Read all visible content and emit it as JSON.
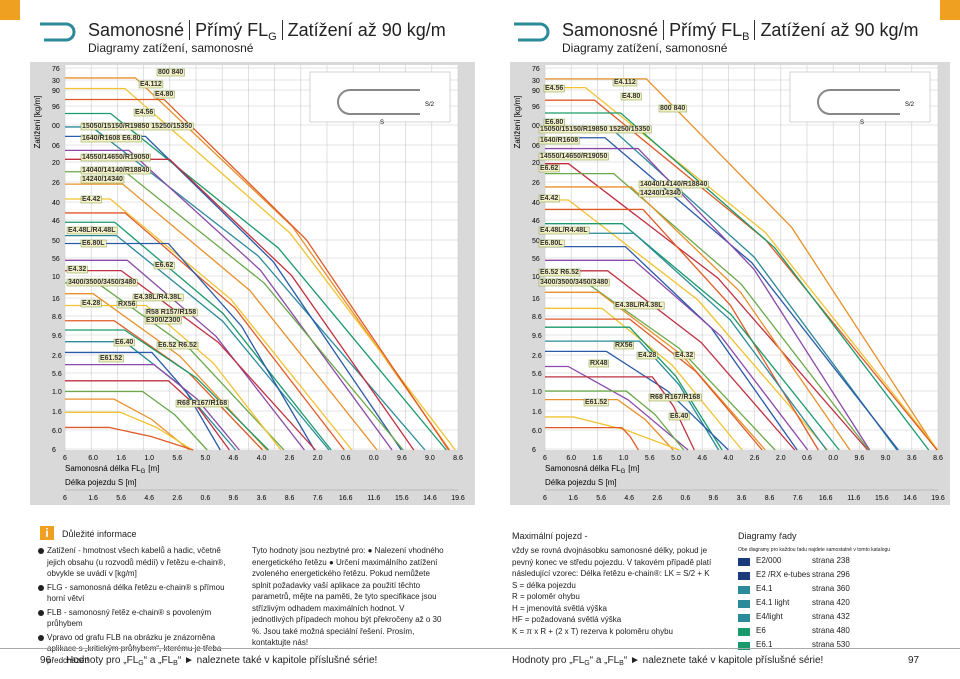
{
  "left": {
    "header": {
      "title_a": "Samonosné",
      "title_b": "Přímý FL",
      "title_b_sub": "G",
      "title_c": "Zatížení až 90 kg/m",
      "subtitle": "Diagramy zatížení, samonosné"
    },
    "chart": {
      "y_label": "Zatížení [kg/m]",
      "yticks": [
        "76",
        "30",
        "90",
        "96",
        "00",
        "06",
        "20",
        "26",
        "40",
        "46",
        "50",
        "56",
        "10",
        "16",
        "8.6",
        "9.6",
        "2.6",
        "5.6",
        "1.0",
        "1.6",
        "6.0",
        "6"
      ],
      "xticks_top": [
        "6",
        "6.0",
        "1.6",
        "1.0",
        "5.6",
        "5.0",
        "4.6",
        "4.0",
        "2.6",
        "2.0",
        "0.6",
        "0.0",
        "9.6",
        "9.0",
        "8.6"
      ],
      "x_label_a": "Samonosná délka FL",
      "x_label_sub": "G",
      "x_label_unit": "[m]",
      "x_label_b": "Délka pojezdu S [m]",
      "xticks_bottom": [
        "6",
        "1.6",
        "5.6",
        "4.6",
        "2.6",
        "0.6",
        "9.6",
        "3.6",
        "8.6",
        "7.6",
        "16.6",
        "11.6",
        "15.6",
        "14.6",
        "19.6"
      ],
      "labels": [
        "800  840",
        "E4.112",
        "E4.80",
        "E4.56",
        "15050/15150/R19850  15250/15350",
        "1640/R1608   E6.80",
        "14550/14650/R19050",
        "14040/14140/R18840",
        "14240/14340",
        "E4.42",
        "E4.48L/R4.48L",
        "E6.80L",
        "E4.32",
        "E6.62",
        "3400/3500/3450/3480",
        "E4.38L/R4.38L",
        "E4.28",
        "RX56",
        "R58  R157/R158",
        "E300/Z300",
        "E6.40",
        "E6.52  R6.52",
        "E61.52",
        "R68  R167/R168"
      ],
      "schema": [
        "S",
        "S/2"
      ]
    },
    "info": {
      "title": "Důležité informace",
      "bullets": [
        "Zatížení - hmotnost všech kabelů a hadic, včetně jejich obsahu (u rozvodů médií) v řetězu e-chain®, obvykle se uvádí v [kg/m]",
        "FLG - samonosná délka řetězu e-chain® s přímou horní větví",
        "FLB - samonosný řetěz e-chain® s povoleným průhybem",
        "Vpravo od grafu FLB na obrázku je znázorněna aplikace s „kritickým průhybem“, kterému je třeba předcházet!"
      ],
      "middle": "Tyto hodnoty jsou nezbytné pro: ● Nalezení vhodného energetického řetězu ● Určení maximálního zatížení zvoleného energetického řetězu. Pokud nemůžete splnit požadavky vaší aplikace za použití těchto parametrů, mějte na paměti, že tyto specifikace jsou střízlivým odhadem maximálních hodnot. V jednotlivých případech mohou být překročeny až o 30 %. Jsou také možná speciální řešení. Prosím, kontaktujte nás!"
    },
    "page_number": "96"
  },
  "right": {
    "header": {
      "title_a": "Samonosné",
      "title_b": "Přímý FL",
      "title_b_sub": "B",
      "title_c": "Zatížení až 90 kg/m",
      "subtitle": "Diagramy zatížení, samonosné"
    },
    "chart": {
      "y_label": "Zatížení [kg/m]",
      "yticks": [
        "76",
        "30",
        "90",
        "96",
        "00",
        "06",
        "20",
        "26",
        "40",
        "46",
        "50",
        "56",
        "10",
        "16",
        "8.6",
        "9.6",
        "2.6",
        "5.6",
        "1.0",
        "1.6",
        "6.0",
        "6"
      ],
      "xticks_top": [
        "6",
        "6.0",
        "1.6",
        "1.0",
        "5.6",
        "5.0",
        "4.6",
        "4.0",
        "2.6",
        "2.0",
        "0.6",
        "0.0",
        "9.6",
        "9.0",
        "3.6",
        "8.6"
      ],
      "x_label_a": "Samonosná délka FL",
      "x_label_sub": "G",
      "x_label_unit": "[m]",
      "x_label_b": "Délka pojezdu S [m]",
      "xticks_bottom": [
        "6",
        "1.6",
        "5.6",
        "4.6",
        "2.6",
        "0.6",
        "9.6",
        "3.6",
        "8.6",
        "7.6",
        "16.6",
        "11.6",
        "15.6",
        "14.6",
        "19.6"
      ],
      "labels": [
        "E4.56",
        "E4.112",
        "E4.80",
        "800  840",
        "E6.80",
        "15050/15150/R19850  15250/15350",
        "1640/R1608",
        "14550/14650/R19050",
        "E6.62",
        "14040/14140/R18840",
        "14240/14340",
        "E4.42",
        "E4.48L/R4.48L",
        "E6.80L",
        "E6.52  R6.52",
        "3400/3500/3450/3480",
        "E4.38L/R4.38L",
        "RX56",
        "RX48",
        "E4.28",
        "E4.32",
        "E61.52",
        "R68  R167/R168",
        "E6.40"
      ],
      "schema": [
        "S",
        "S/2"
      ]
    },
    "info": {
      "title": "Maximální pojezd -",
      "lines": [
        "vždy se rovná dvojnásobku samonosné délky, pokud je pevný konec ve středu pojezdu. V takovém případě platí následující vzorec: Délka řetězu e-chain®: LK = S/2 + K",
        "S = délka pojezdu",
        "R = poloměr ohybu",
        "H = jmenovitá světlá výška",
        "HF = požadovaná světlá výška",
        "K = π x R + (2 x T) rezerva k poloměru ohybu"
      ]
    },
    "series_table": {
      "title": "Diagramy řady",
      "note": "Obe diagramy pro každou řadu najdete samostatně v tomto katalogu",
      "rows": [
        [
          "E2/000",
          "strana 238"
        ],
        [
          "E2 /RX e-tubes",
          "strana 296"
        ],
        [
          "E4.1",
          "strana 360"
        ],
        [
          "E4.1 light",
          "strana 420"
        ],
        [
          "E4/light",
          "strana 432"
        ],
        [
          "E6",
          "strana 480"
        ],
        [
          "E6.1",
          "strana 530"
        ]
      ]
    },
    "page_number": "97"
  },
  "footer": [
    "Hodnoty pro „FL",
    "G",
    "“ a „FL",
    "B",
    "“ ► naleznete také v kapitole příslušné série!"
  ]
}
